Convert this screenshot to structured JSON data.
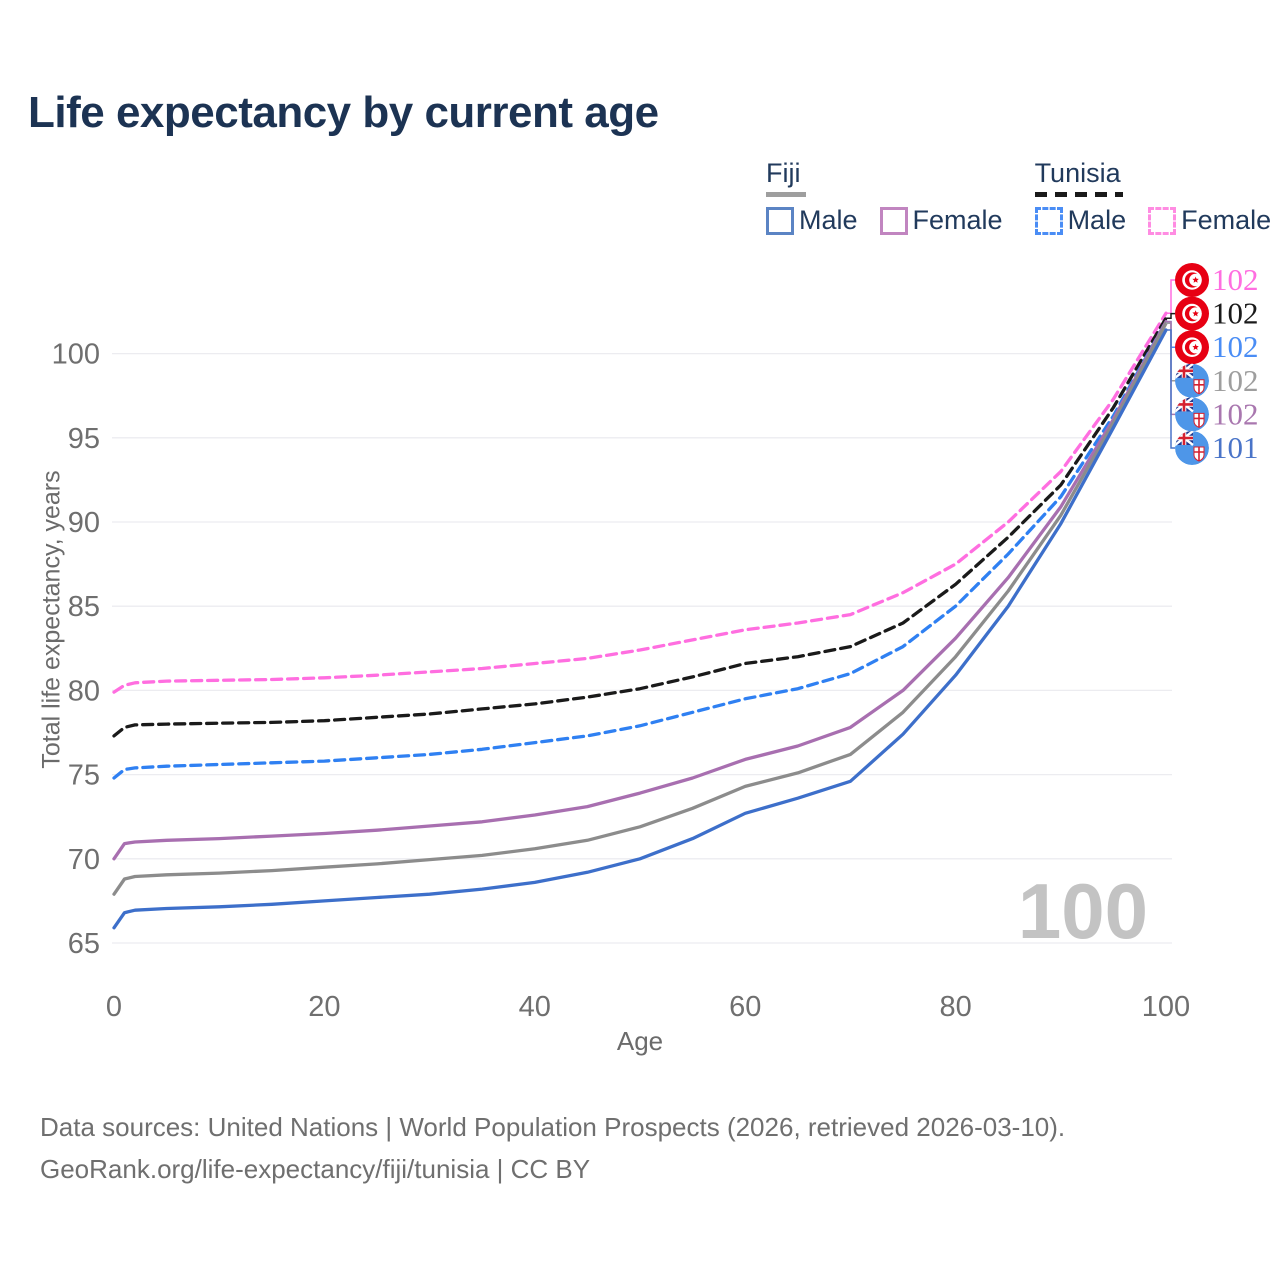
{
  "title": "Life expectancy by current age",
  "watermark": "100",
  "legend": {
    "groups": [
      {
        "label": "Fiji",
        "line_style": "solid",
        "rule_color": "#9e9e9e",
        "items": [
          {
            "label": "Male",
            "color": "#5b84c4"
          },
          {
            "label": "Female",
            "color": "#c185c0"
          }
        ]
      },
      {
        "label": "Tunisia",
        "line_style": "dashed",
        "rule_color": "#1a1a1a",
        "items": [
          {
            "label": "Male",
            "color": "#4a8df5"
          },
          {
            "label": "Female",
            "color": "#ff8ce2"
          }
        ]
      }
    ]
  },
  "footer": {
    "line1": "Data sources: United Nations | World Population Prospects (2026, retrieved 2026-03-10).",
    "line2": "GeoRank.org/life-expectancy/fiji/tunisia | CC BY"
  },
  "chart_data": {
    "type": "line",
    "title": "Life expectancy by current age",
    "xlabel": "Age",
    "ylabel": "Total life expectancy, years",
    "xlim": [
      0,
      100
    ],
    "ylim": [
      65,
      103
    ],
    "x_ticks": [
      0,
      20,
      40,
      60,
      80,
      100
    ],
    "y_ticks": [
      65,
      70,
      75,
      80,
      85,
      90,
      95,
      100
    ],
    "grid": "horizontal",
    "legend_position": "top-right",
    "ages": [
      0,
      1,
      2,
      5,
      10,
      15,
      20,
      25,
      30,
      35,
      40,
      45,
      50,
      55,
      60,
      65,
      70,
      75,
      80,
      85,
      90,
      95,
      100
    ],
    "series": [
      {
        "name": "tunisia_female",
        "country": "Tunisia",
        "sex": "Female",
        "line_style": "dashed",
        "color": "#ff6ee0",
        "values": [
          79.9,
          80.3,
          80.45,
          80.55,
          80.6,
          80.65,
          80.75,
          80.9,
          81.1,
          81.3,
          81.6,
          81.9,
          82.4,
          83.0,
          83.6,
          84.0,
          84.5,
          85.8,
          87.5,
          90.0,
          93.0,
          97.3,
          102.4
        ]
      },
      {
        "name": "tunisia_total",
        "country": "Tunisia",
        "sex": "Both sexes",
        "line_style": "dashed",
        "color": "#1a1a1a",
        "values": [
          77.3,
          77.8,
          77.95,
          78.0,
          78.05,
          78.1,
          78.2,
          78.4,
          78.6,
          78.9,
          79.2,
          79.6,
          80.1,
          80.8,
          81.6,
          82.0,
          82.6,
          84.0,
          86.3,
          89.1,
          92.2,
          96.8,
          102.1
        ]
      },
      {
        "name": "tunisia_male",
        "country": "Tunisia",
        "sex": "Male",
        "line_style": "dashed",
        "color": "#2f80f2",
        "values": [
          74.8,
          75.3,
          75.4,
          75.5,
          75.6,
          75.7,
          75.8,
          76.0,
          76.2,
          76.5,
          76.9,
          77.3,
          77.9,
          78.7,
          79.5,
          80.1,
          81.0,
          82.6,
          85.0,
          88.1,
          91.5,
          96.3,
          101.9
        ]
      },
      {
        "name": "fiji_female",
        "country": "Fiji",
        "sex": "Female",
        "line_style": "solid",
        "color": "#a86fb0",
        "values": [
          70.0,
          70.9,
          71.0,
          71.1,
          71.2,
          71.35,
          71.5,
          71.7,
          71.95,
          72.2,
          72.6,
          73.1,
          73.9,
          74.8,
          75.9,
          76.7,
          77.8,
          80.0,
          83.1,
          86.7,
          90.9,
          96.1,
          101.9
        ]
      },
      {
        "name": "fiji_total",
        "country": "Fiji",
        "sex": "Both sexes",
        "line_style": "solid",
        "color": "#8c8c8c",
        "values": [
          67.9,
          68.8,
          68.95,
          69.05,
          69.15,
          69.3,
          69.5,
          69.7,
          69.95,
          70.2,
          70.6,
          71.1,
          71.9,
          73.0,
          74.3,
          75.1,
          76.2,
          78.7,
          82.0,
          85.9,
          90.4,
          95.9,
          101.8
        ]
      },
      {
        "name": "fiji_male",
        "country": "Fiji",
        "sex": "Male",
        "line_style": "solid",
        "color": "#3d6fca",
        "values": [
          65.9,
          66.8,
          66.95,
          67.05,
          67.15,
          67.3,
          67.5,
          67.7,
          67.9,
          68.2,
          68.6,
          69.2,
          70.0,
          71.2,
          72.7,
          73.6,
          74.6,
          77.4,
          80.9,
          85.0,
          89.9,
          95.6,
          101.4
        ]
      }
    ],
    "end_labels": [
      {
        "series": "tunisia_female",
        "flag": "tunisia",
        "value": "102",
        "color": "#ff6ee0"
      },
      {
        "series": "tunisia_total",
        "flag": "tunisia",
        "value": "102",
        "color": "#1a1a1a"
      },
      {
        "series": "tunisia_male",
        "flag": "tunisia",
        "value": "102",
        "color": "#4a8df5"
      },
      {
        "series": "fiji_total",
        "flag": "fiji",
        "value": "102",
        "color": "#9e9e9e"
      },
      {
        "series": "fiji_female",
        "flag": "fiji",
        "value": "102",
        "color": "#a977af"
      },
      {
        "series": "fiji_male",
        "flag": "fiji",
        "value": "101",
        "color": "#4a74c8"
      }
    ]
  }
}
